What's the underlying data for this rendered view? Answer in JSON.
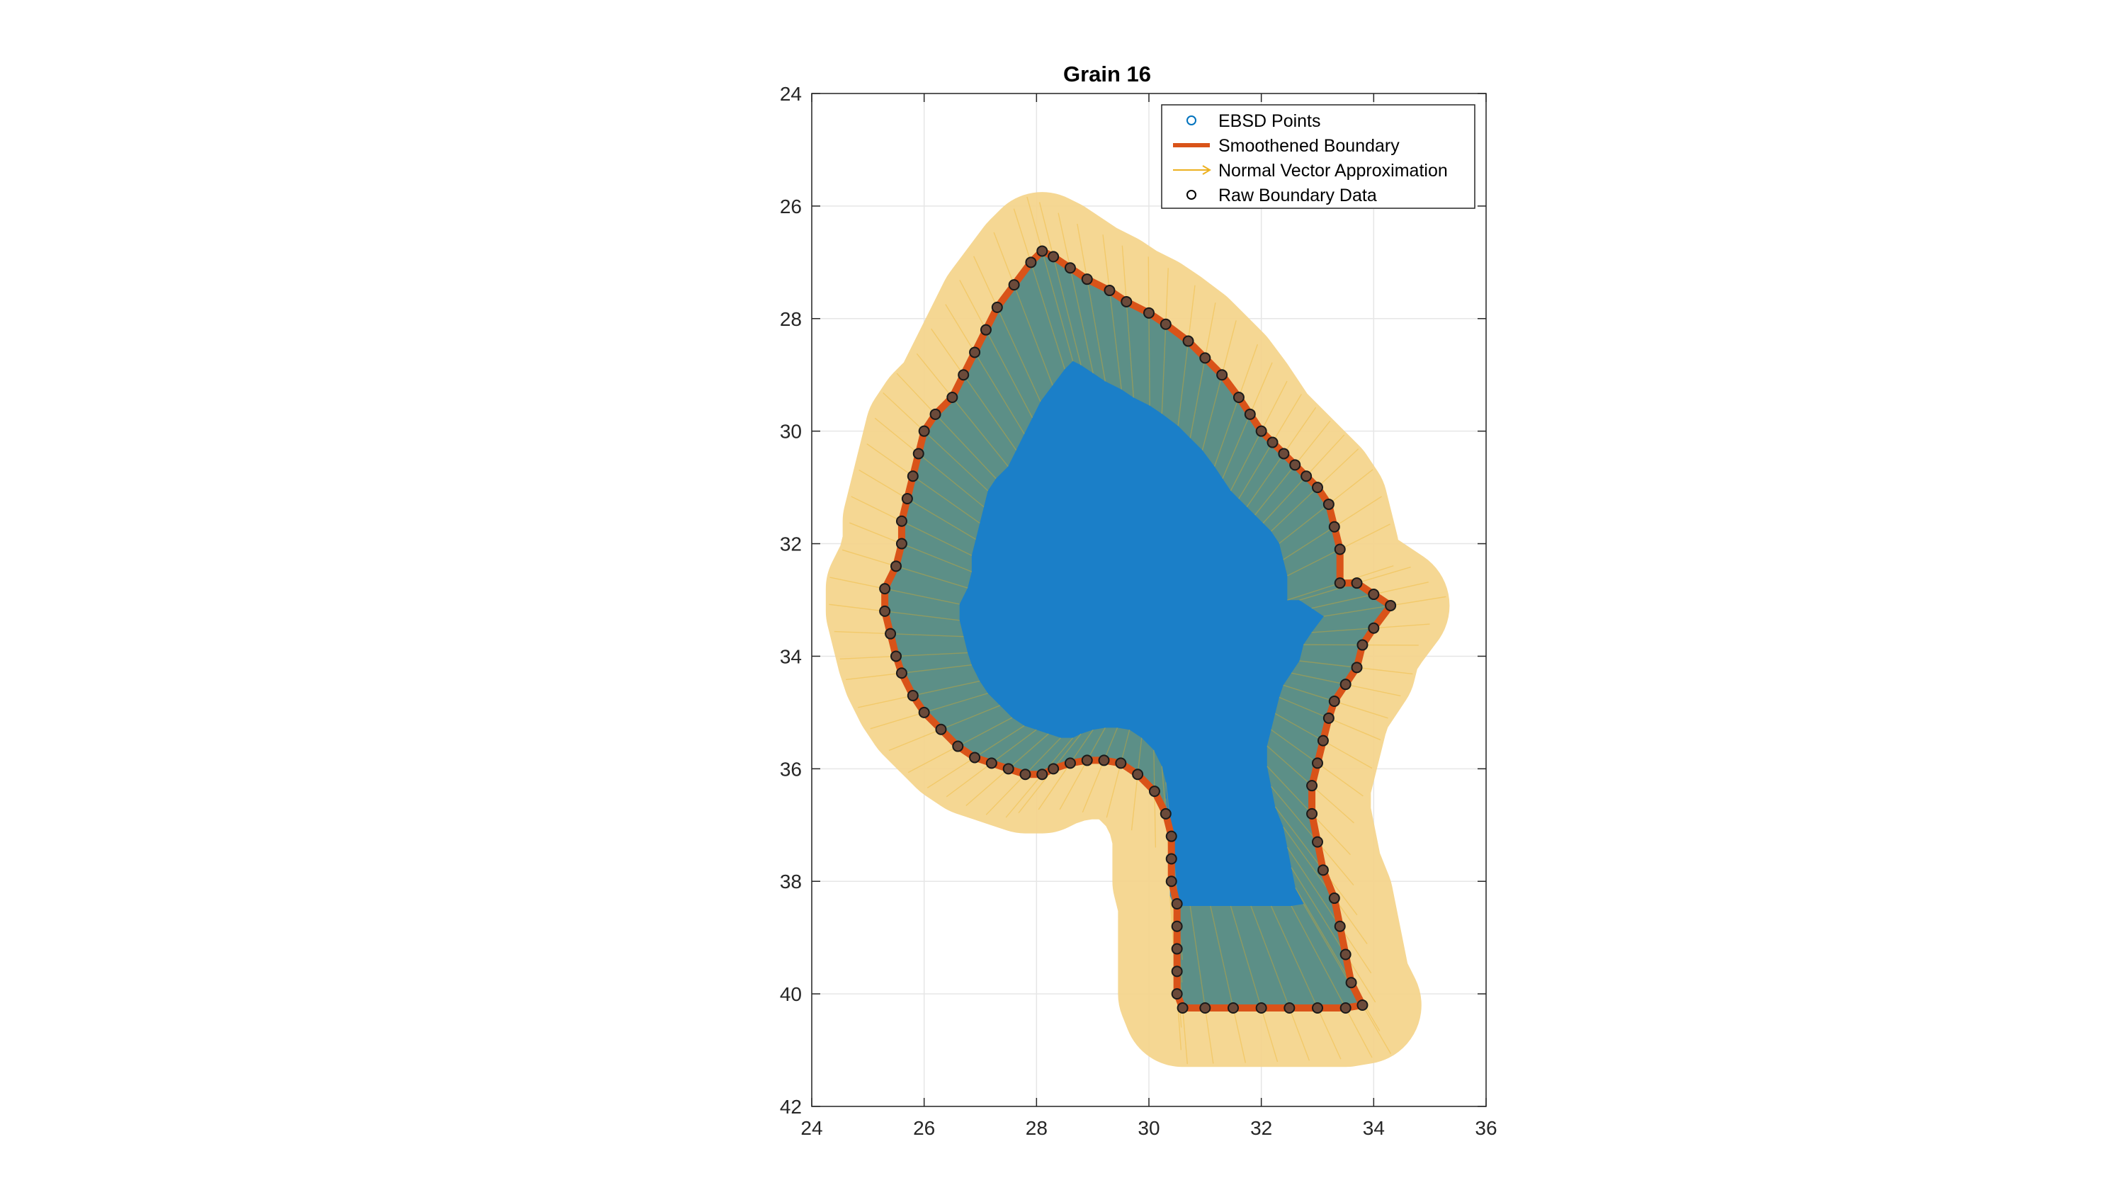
{
  "chart_data": {
    "type": "scatter",
    "title": "Grain 16",
    "xlabel": "",
    "ylabel": "",
    "xlim": [
      24,
      36
    ],
    "ylim": [
      24,
      42
    ],
    "y_reversed": true,
    "grid": true,
    "xticks": [
      24,
      26,
      28,
      30,
      32,
      34,
      36
    ],
    "yticks": [
      24,
      26,
      28,
      30,
      32,
      34,
      36,
      38,
      40,
      42
    ],
    "legend_position": "top-right",
    "legend": [
      {
        "name": "EBSD Points",
        "marker": "circle",
        "color": "#0072BD"
      },
      {
        "name": "Smoothened Boundary",
        "marker": "line",
        "color": "#D95319"
      },
      {
        "name": "Normal Vector Approximation",
        "marker": "arrow",
        "color": "#EDB120"
      },
      {
        "name": "Raw Boundary Data",
        "marker": "circle",
        "color": "#000000"
      }
    ],
    "series": [
      {
        "name": "Raw Boundary Data",
        "x": [
          28.1,
          28.3,
          28.6,
          28.9,
          29.3,
          29.6,
          30.0,
          30.3,
          30.7,
          31.0,
          31.3,
          31.6,
          31.8,
          32.0,
          32.2,
          32.4,
          32.6,
          32.8,
          33.0,
          33.2,
          33.3,
          33.4,
          33.4,
          33.7,
          34.0,
          34.3,
          34.0,
          33.8,
          33.7,
          33.5,
          33.3,
          33.2,
          33.1,
          33.0,
          32.9,
          32.9,
          33.0,
          33.1,
          33.3,
          33.4,
          33.5,
          33.6,
          33.8,
          33.5,
          33.0,
          32.5,
          32.0,
          31.5,
          31.0,
          30.6,
          30.5,
          30.5,
          30.5,
          30.5,
          30.5,
          30.4,
          30.4,
          30.4,
          30.3,
          30.1,
          29.8,
          29.5,
          29.2,
          28.9,
          28.6,
          28.3,
          28.1,
          27.8,
          27.5,
          27.2,
          26.9,
          26.6,
          26.3,
          26.0,
          25.8,
          25.6,
          25.5,
          25.4,
          25.3,
          25.3,
          25.5,
          25.6,
          25.6,
          25.7,
          25.8,
          25.9,
          26.0,
          26.2,
          26.5,
          26.7,
          26.9,
          27.1,
          27.3,
          27.6,
          27.9
        ],
        "y": [
          26.8,
          26.9,
          27.1,
          27.3,
          27.5,
          27.7,
          27.9,
          28.1,
          28.4,
          28.7,
          29.0,
          29.4,
          29.7,
          30.0,
          30.2,
          30.4,
          30.6,
          30.8,
          31.0,
          31.3,
          31.7,
          32.1,
          32.7,
          32.7,
          32.9,
          33.1,
          33.5,
          33.8,
          34.2,
          34.5,
          34.8,
          35.1,
          35.5,
          35.9,
          36.3,
          36.8,
          37.3,
          37.8,
          38.3,
          38.8,
          39.3,
          39.8,
          40.2,
          40.25,
          40.25,
          40.25,
          40.25,
          40.25,
          40.25,
          40.25,
          40.0,
          39.6,
          39.2,
          38.8,
          38.4,
          38.0,
          37.6,
          37.2,
          36.8,
          36.4,
          36.1,
          35.9,
          35.85,
          35.85,
          35.9,
          36.0,
          36.1,
          36.1,
          36.0,
          35.9,
          35.8,
          35.6,
          35.3,
          35.0,
          34.7,
          34.3,
          34.0,
          33.6,
          33.2,
          32.8,
          32.4,
          32.0,
          31.6,
          31.2,
          30.8,
          30.4,
          30.0,
          29.7,
          29.4,
          29.0,
          28.6,
          28.2,
          27.8,
          27.4,
          27.0
        ]
      }
    ]
  }
}
